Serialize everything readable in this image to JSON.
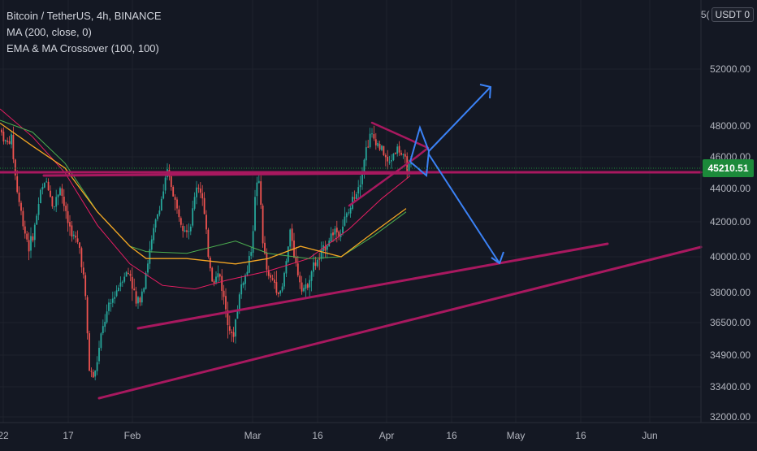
{
  "legend": {
    "symbol": "Bitcoin / TetherUS, 4h, BINANCE",
    "indicator1": "MA (200, close, 0)",
    "indicator2": "EMA & MA Crossover (100, 100)"
  },
  "top_right": {
    "clipped_label": "5(",
    "currency_button": "USDT 0"
  },
  "last_price": "45210.51",
  "colors": {
    "background": "#141823",
    "candle_up": "#26a69a",
    "candle_down": "#ef5350",
    "ma200": "#e91e63",
    "ema100": "#f4a623",
    "ma100": "#4caf50",
    "trendline": "#a8185f",
    "arrow": "#3b82f6",
    "price_badge": "#1c8a3a"
  },
  "chart_data": {
    "type": "candlestick",
    "title": "Bitcoin / TetherUS, 4h, BINANCE",
    "y_axis_ticks": [
      "52000.00",
      "48000.00",
      "46000.00",
      "44000.00",
      "42000.00",
      "40000.00",
      "38000.00",
      "36500.00",
      "34900.00",
      "33400.00",
      "32000.00"
    ],
    "x_axis_ticks": [
      "22",
      "17",
      "Feb",
      "Mar",
      "16",
      "Apr",
      "16",
      "May",
      "16",
      "Jun"
    ],
    "ohlc_path_closes": [
      [
        0,
        47800
      ],
      [
        8,
        46800
      ],
      [
        14,
        47200
      ],
      [
        20,
        44200
      ],
      [
        28,
        42000
      ],
      [
        36,
        40500
      ],
      [
        42,
        41500
      ],
      [
        50,
        43800
      ],
      [
        58,
        44500
      ],
      [
        66,
        42800
      ],
      [
        74,
        44200
      ],
      [
        82,
        42200
      ],
      [
        90,
        41200
      ],
      [
        98,
        40500
      ],
      [
        104,
        38500
      ],
      [
        110,
        34200
      ],
      [
        116,
        33800
      ],
      [
        122,
        35200
      ],
      [
        128,
        36500
      ],
      [
        136,
        37400
      ],
      [
        144,
        38200
      ],
      [
        152,
        39000
      ],
      [
        160,
        39100
      ],
      [
        168,
        37300
      ],
      [
        176,
        38300
      ],
      [
        184,
        40200
      ],
      [
        192,
        42100
      ],
      [
        200,
        43600
      ],
      [
        206,
        45000
      ],
      [
        212,
        44000
      ],
      [
        218,
        42700
      ],
      [
        226,
        41800
      ],
      [
        234,
        41600
      ],
      [
        242,
        44200
      ],
      [
        248,
        43900
      ],
      [
        256,
        40300
      ],
      [
        262,
        38600
      ],
      [
        270,
        39100
      ],
      [
        276,
        37600
      ],
      [
        282,
        36500
      ],
      [
        286,
        35500
      ],
      [
        292,
        37200
      ],
      [
        298,
        38600
      ],
      [
        304,
        39100
      ],
      [
        310,
        40700
      ],
      [
        316,
        44600
      ],
      [
        320,
        44000
      ],
      [
        324,
        40600
      ],
      [
        330,
        38800
      ],
      [
        338,
        38600
      ],
      [
        346,
        37800
      ],
      [
        352,
        39600
      ],
      [
        358,
        41600
      ],
      [
        364,
        39600
      ],
      [
        370,
        38600
      ],
      [
        376,
        38100
      ],
      [
        382,
        39100
      ],
      [
        388,
        39600
      ],
      [
        394,
        39900
      ],
      [
        400,
        40600
      ],
      [
        406,
        41100
      ],
      [
        412,
        41600
      ],
      [
        418,
        41300
      ],
      [
        424,
        42100
      ],
      [
        430,
        42600
      ],
      [
        436,
        43600
      ],
      [
        444,
        44600
      ],
      [
        450,
        46400
      ],
      [
        456,
        47400
      ],
      [
        462,
        47100
      ],
      [
        468,
        46600
      ],
      [
        474,
        46100
      ],
      [
        478,
        45400
      ],
      [
        484,
        46200
      ],
      [
        490,
        46600
      ],
      [
        496,
        45900
      ],
      [
        502,
        45400
      ],
      [
        508,
        45200
      ]
    ],
    "moving_averages": [
      {
        "name": "MA (200, close, 0)"
      },
      {
        "name": "EMA & MA Crossover (100, 100)"
      }
    ]
  }
}
